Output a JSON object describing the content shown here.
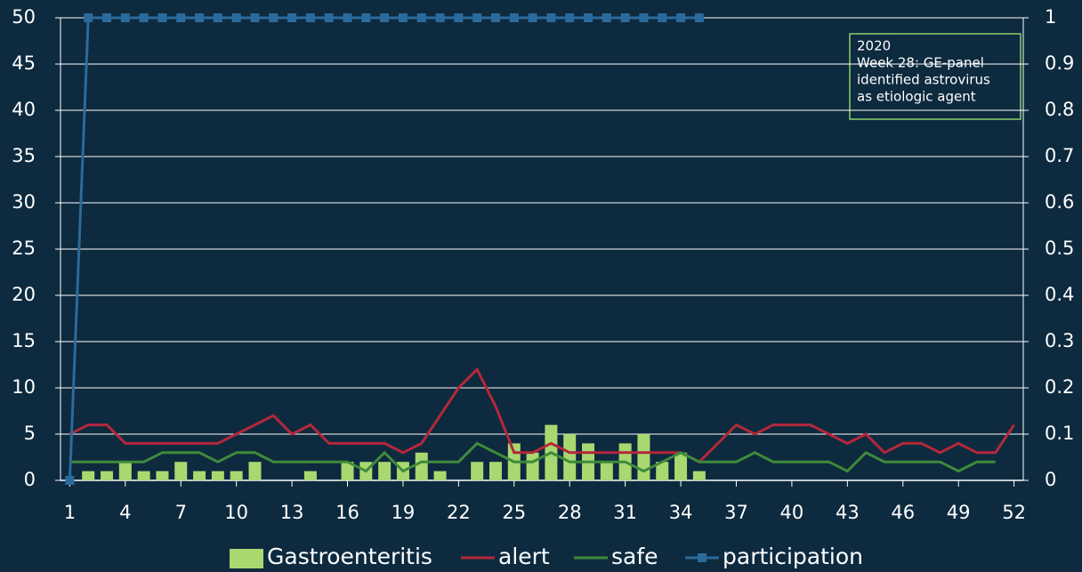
{
  "chart_data": {
    "type": "bar",
    "x": [
      1,
      2,
      3,
      4,
      5,
      6,
      7,
      8,
      9,
      10,
      11,
      12,
      13,
      14,
      15,
      16,
      17,
      18,
      19,
      20,
      21,
      22,
      23,
      24,
      25,
      26,
      27,
      28,
      29,
      30,
      31,
      32,
      33,
      34,
      35,
      36,
      37,
      38,
      39,
      40,
      41,
      42,
      43,
      44,
      45,
      46,
      47,
      48,
      49,
      50,
      51,
      52
    ],
    "xlim": [
      0.5,
      52.5
    ],
    "xticks": [
      1,
      4,
      7,
      10,
      13,
      16,
      19,
      22,
      25,
      28,
      31,
      34,
      37,
      40,
      43,
      46,
      49,
      52
    ],
    "ylim": [
      0,
      50
    ],
    "yticks": [
      0,
      5,
      10,
      15,
      20,
      25,
      30,
      35,
      40,
      45,
      50
    ],
    "y2lim": [
      0,
      1
    ],
    "y2ticks": [
      0,
      0.1,
      0.2,
      0.3,
      0.4,
      0.5,
      0.6,
      0.7,
      0.8,
      0.9,
      1
    ],
    "grid": true,
    "legend": "bottom",
    "series": [
      {
        "name": "Gastroenteritis",
        "type": "bar",
        "color": "#a9d870",
        "values": [
          0,
          1,
          1,
          2,
          1,
          1,
          2,
          1,
          1,
          1,
          2,
          0,
          0,
          1,
          0,
          2,
          2,
          2,
          2,
          3,
          1,
          0,
          2,
          2,
          4,
          3,
          6,
          5,
          4,
          2,
          4,
          5,
          2,
          3,
          1,
          null,
          null,
          null,
          null,
          null,
          null,
          null,
          null,
          null,
          null,
          null,
          null,
          null,
          null,
          null,
          null,
          null
        ]
      },
      {
        "name": "alert",
        "type": "line",
        "color": "#b3283a",
        "values": [
          5,
          6,
          6,
          4,
          4,
          4,
          4,
          4,
          4,
          5,
          6,
          7,
          5,
          6,
          4,
          4,
          4,
          4,
          3,
          4,
          7,
          10,
          12,
          8,
          3,
          3,
          4,
          3,
          3,
          3,
          3,
          3,
          3,
          3,
          2,
          4,
          6,
          5,
          6,
          6,
          6,
          5,
          4,
          5,
          3,
          4,
          4,
          3,
          4,
          3,
          3,
          6
        ]
      },
      {
        "name": "safe",
        "type": "line",
        "color": "#3f8a3a",
        "values": [
          2,
          2,
          2,
          2,
          2,
          3,
          3,
          3,
          2,
          3,
          3,
          2,
          2,
          2,
          2,
          2,
          1,
          3,
          1,
          2,
          2,
          2,
          4,
          3,
          2,
          2,
          3,
          2,
          2,
          2,
          2,
          1,
          2,
          3,
          2,
          2,
          2,
          3,
          2,
          2,
          2,
          2,
          1,
          3,
          2,
          2,
          2,
          2,
          1,
          2,
          2,
          null
        ]
      },
      {
        "name": "participation",
        "type": "line",
        "marker": "square",
        "axis": "y2",
        "color": "#2a6b9c",
        "values": [
          0,
          1,
          1,
          1,
          1,
          1,
          1,
          1,
          1,
          1,
          1,
          1,
          1,
          1,
          1,
          1,
          1,
          1,
          1,
          1,
          1,
          1,
          1,
          1,
          1,
          1,
          1,
          1,
          1,
          1,
          1,
          1,
          1,
          1,
          1,
          null,
          null,
          null,
          null,
          null,
          null,
          null,
          null,
          null,
          null,
          null,
          null,
          null,
          null,
          null,
          null,
          null
        ]
      }
    ],
    "annotation": [
      "2020",
      "Week 28: GE-panel",
      "identified astrovirus",
      "as etiologic agent"
    ]
  }
}
